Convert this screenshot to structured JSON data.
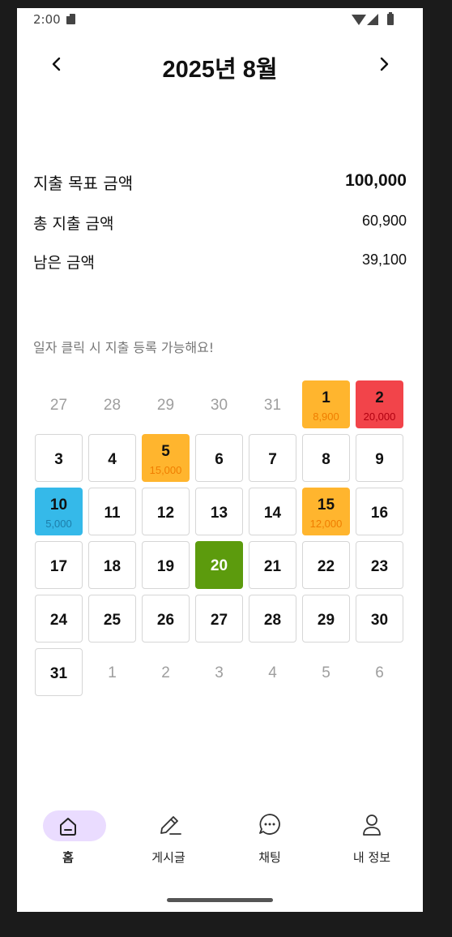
{
  "status_bar": {
    "time": "2:00",
    "icons": [
      "sd-card-icon",
      "wifi-icon",
      "signal-icon",
      "battery-icon"
    ]
  },
  "header": {
    "title": "2025년 8월",
    "prev_icon": "chevron-left-icon",
    "next_icon": "chevron-right-icon"
  },
  "summary": {
    "goal_label": "지출 목표 금액",
    "goal_value": "100,000",
    "spent_label": "총 지출 금액",
    "spent_value": "60,900",
    "remaining_label": "남은 금액",
    "remaining_value": "39,100"
  },
  "hint": "일자 클릭 시 지출 등록 가능해요!",
  "colors": {
    "orange": "#ffb52e",
    "red": "#f2444a",
    "blue": "#35b9e9",
    "green": "#5c9b0d",
    "nav_active": "#eadcff"
  },
  "calendar": {
    "days": [
      {
        "day": "27",
        "outside": true
      },
      {
        "day": "28",
        "outside": true
      },
      {
        "day": "29",
        "outside": true
      },
      {
        "day": "30",
        "outside": true
      },
      {
        "day": "31",
        "outside": true
      },
      {
        "day": "1",
        "amount": "8,900",
        "color": "orange"
      },
      {
        "day": "2",
        "amount": "20,000",
        "color": "red"
      },
      {
        "day": "3"
      },
      {
        "day": "4"
      },
      {
        "day": "5",
        "amount": "15,000",
        "color": "orange"
      },
      {
        "day": "6"
      },
      {
        "day": "7"
      },
      {
        "day": "8"
      },
      {
        "day": "9"
      },
      {
        "day": "10",
        "amount": "5,000",
        "color": "blue"
      },
      {
        "day": "11"
      },
      {
        "day": "12"
      },
      {
        "day": "13"
      },
      {
        "day": "14"
      },
      {
        "day": "15",
        "amount": "12,000",
        "color": "orange"
      },
      {
        "day": "16"
      },
      {
        "day": "17"
      },
      {
        "day": "18"
      },
      {
        "day": "19"
      },
      {
        "day": "20",
        "color": "green",
        "today": true
      },
      {
        "day": "21"
      },
      {
        "day": "22"
      },
      {
        "day": "23"
      },
      {
        "day": "24"
      },
      {
        "day": "25"
      },
      {
        "day": "26"
      },
      {
        "day": "27"
      },
      {
        "day": "28"
      },
      {
        "day": "29"
      },
      {
        "day": "30"
      },
      {
        "day": "31"
      },
      {
        "day": "1",
        "outside": true
      },
      {
        "day": "2",
        "outside": true
      },
      {
        "day": "3",
        "outside": true
      },
      {
        "day": "4",
        "outside": true
      },
      {
        "day": "5",
        "outside": true
      },
      {
        "day": "6",
        "outside": true
      }
    ]
  },
  "bottom_nav": [
    {
      "label": "홈",
      "icon": "home-icon",
      "active": true
    },
    {
      "label": "게시글",
      "icon": "pencil-icon"
    },
    {
      "label": "채팅",
      "icon": "chat-bubble-icon"
    },
    {
      "label": "내 정보",
      "icon": "person-icon"
    }
  ]
}
